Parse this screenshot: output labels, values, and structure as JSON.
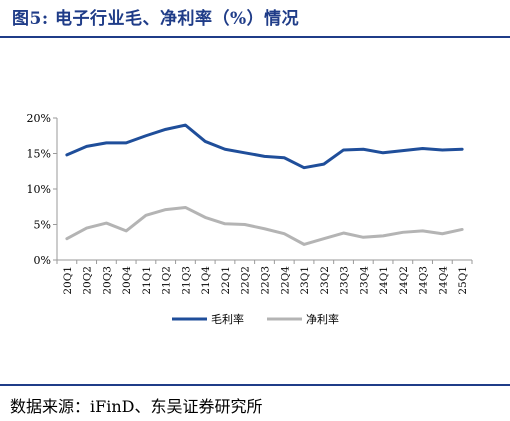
{
  "figure": {
    "title": "图5:  电子行业毛、净利率（%）情况",
    "source": "数据来源：iFinD、东吴证券研究所"
  },
  "colors": {
    "title": "#1f3c88",
    "gross_margin": "#1f4e9a",
    "net_margin": "#b4b4b4",
    "axis": "#9a9a9a"
  },
  "chart_data": {
    "type": "line",
    "categories": [
      "20Q1",
      "20Q2",
      "20Q3",
      "20Q4",
      "21Q1",
      "21Q2",
      "21Q3",
      "21Q4",
      "22Q1",
      "22Q2",
      "22Q3",
      "22Q4",
      "23Q1",
      "23Q2",
      "23Q3",
      "23Q4",
      "24Q1",
      "24Q2",
      "24Q3",
      "24Q4",
      "25Q1"
    ],
    "series": [
      {
        "name": "毛利率",
        "values": [
          14.8,
          16.0,
          16.5,
          16.5,
          17.5,
          18.4,
          19.0,
          16.7,
          15.6,
          15.1,
          14.6,
          14.4,
          13.0,
          13.5,
          15.5,
          15.6,
          15.1,
          15.4,
          15.7,
          15.5,
          15.6
        ]
      },
      {
        "name": "净利率",
        "values": [
          3.0,
          4.5,
          5.2,
          4.1,
          6.3,
          7.1,
          7.4,
          6.0,
          5.1,
          5.0,
          4.4,
          3.7,
          2.2,
          3.0,
          3.8,
          3.2,
          3.4,
          3.9,
          4.1,
          3.7,
          4.3
        ]
      }
    ],
    "yticks": [
      "0%",
      "5%",
      "10%",
      "15%",
      "20%"
    ],
    "ylim": [
      0,
      20
    ],
    "legend": "bottom"
  }
}
